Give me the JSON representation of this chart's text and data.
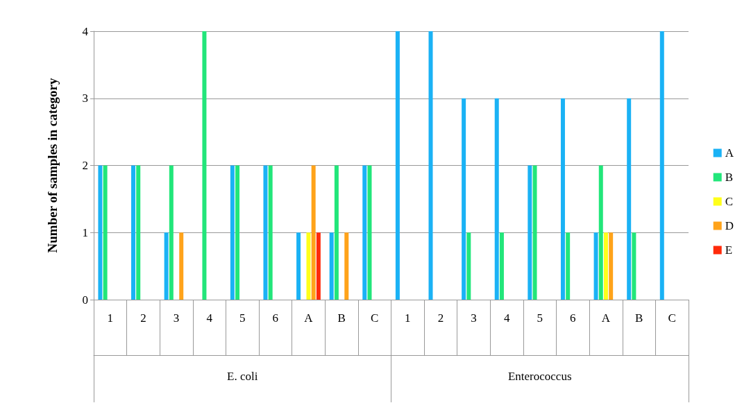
{
  "chart_data": {
    "type": "bar",
    "ylabel": "Number of samples in category",
    "categories": [
      "1",
      "2",
      "3",
      "4",
      "5",
      "6",
      "A",
      "B",
      "C",
      "1",
      "2",
      "3",
      "4",
      "5",
      "6",
      "A",
      "B",
      "C"
    ],
    "annotations": [
      "E. coli",
      "Enterococcus"
    ],
    "series": [
      {
        "name": "A",
        "color": "#1ab2f5",
        "values": [
          2,
          2,
          1,
          0,
          2,
          2,
          1,
          1,
          2,
          4,
          4,
          3,
          3,
          2,
          3,
          1,
          3,
          4
        ]
      },
      {
        "name": "B",
        "color": "#22e67a",
        "values": [
          2,
          2,
          2,
          4,
          2,
          2,
          0,
          2,
          2,
          0,
          0,
          1,
          1,
          2,
          1,
          2,
          1,
          0
        ]
      },
      {
        "name": "C",
        "color": "#ffff1a",
        "values": [
          0,
          0,
          0,
          0,
          0,
          0,
          1,
          0,
          0,
          0,
          0,
          0,
          0,
          0,
          0,
          1,
          0,
          0
        ]
      },
      {
        "name": "D",
        "color": "#ffa31a",
        "values": [
          0,
          0,
          1,
          0,
          0,
          0,
          2,
          1,
          0,
          0,
          0,
          0,
          0,
          0,
          0,
          1,
          0,
          0
        ]
      },
      {
        "name": "E",
        "color": "#ff2a0a",
        "values": [
          0,
          0,
          0,
          0,
          0,
          0,
          1,
          0,
          0,
          0,
          0,
          0,
          0,
          0,
          0,
          0,
          0,
          0
        ]
      }
    ],
    "ylim": [
      0,
      4
    ],
    "yticks": [
      0,
      1,
      2,
      3,
      4
    ],
    "grid": "y",
    "legend": "right"
  }
}
